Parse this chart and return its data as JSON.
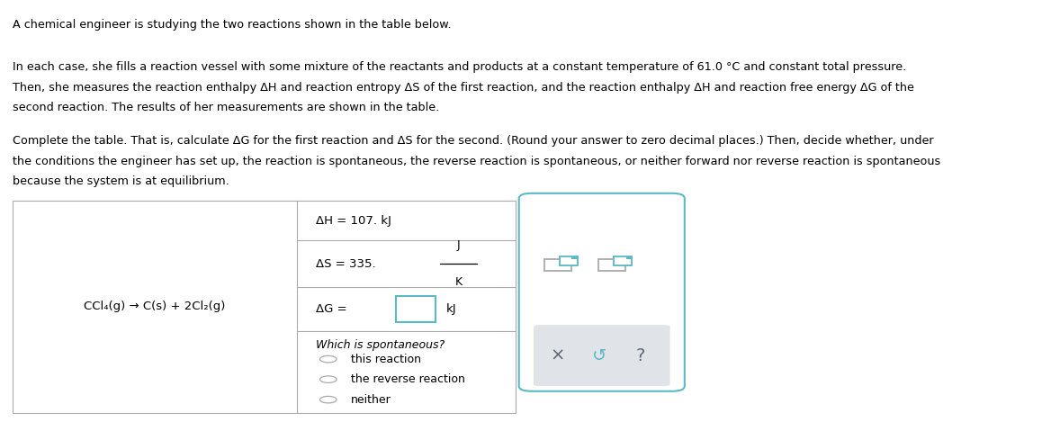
{
  "bg_color": "#ffffff",
  "text_color": "#000000",
  "line1": "A chemical engineer is studying the two reactions shown in the table below.",
  "line2": "In each case, she fills a reaction vessel with some mixture of the reactants and products at a constant temperature of 61.0 °C and constant total pressure.",
  "line3": "Then, she measures the reaction enthalpy ΔH and reaction entropy ΔS of the first reaction, and the reaction enthalpy ΔH and reaction free energy ΔG of the",
  "line4": "second reaction. The results of her measurements are shown in the table.",
  "line5": "Complete the table. That is, calculate ΔG for the first reaction and ΔS for the second. (Round your answer to zero decimal places.) Then, decide whether, under",
  "line6": "the conditions the engineer has set up, the reaction is spontaneous, the reverse reaction is spontaneous, or neither forward nor reverse reaction is spontaneous",
  "line7": "because the system is at equilibrium.",
  "reaction": "CCl₄(g) → C(s) + 2Cl₂(g)",
  "dH_label": "ΔH = 107. kJ",
  "dS_prefix": "ΔS = 335.",
  "dS_num": "J",
  "dS_den": "K",
  "dG_label": "ΔG =",
  "dG_unit": "kJ",
  "which_spont": "Which is spontaneous?",
  "opt1": "this reaction",
  "opt2": "the reverse reaction",
  "opt3": "neither",
  "teal": "#5bb8c4",
  "teal_dark": "#4a9faa",
  "gray_light": "#e0e4e8",
  "gray_text": "#5a6a72",
  "border_gray": "#aaaaaa"
}
